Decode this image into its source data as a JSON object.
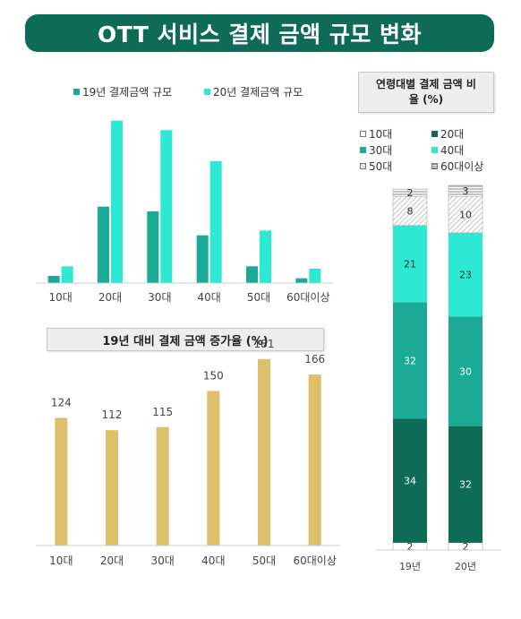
{
  "title": "OTT 서비스 결제 금액 규모 변화",
  "colors": {
    "banner": "#0e6b57",
    "teal_dark": "#0e6b57",
    "teal_mid": "#1aaa96",
    "teal_light": "#2de8d2",
    "gold": "#dcc06a",
    "white": "#ffffff",
    "hatch": "#cfcfcf"
  },
  "chart_data": [
    {
      "type": "bar",
      "title": "",
      "categories": [
        "10대",
        "20대",
        "30대",
        "40대",
        "50대",
        "60대이상"
      ],
      "series": [
        {
          "name": "19년 결제금액 규모",
          "values": [
            3,
            32,
            30,
            20,
            7,
            2
          ]
        },
        {
          "name": "20년 결제금액 규모",
          "values": [
            7,
            68,
            64,
            51,
            22,
            6
          ]
        }
      ],
      "xlabel": "",
      "ylabel": "",
      "ylim": [
        0,
        75
      ],
      "grid": false,
      "legend": "top"
    },
    {
      "type": "bar",
      "title": "19년 대비 결제 금액 증가율 (%)",
      "categories": [
        "10대",
        "20대",
        "30대",
        "40대",
        "50대",
        "60대이상"
      ],
      "values": [
        124,
        112,
        115,
        150,
        181,
        166
      ],
      "ylim": [
        0,
        220
      ],
      "grid": false
    },
    {
      "type": "bar",
      "stacked": true,
      "title": "연령대별 결제 금액 비율 (%)",
      "categories": [
        "19년",
        "20년"
      ],
      "series": [
        {
          "name": "10대",
          "values": [
            2,
            2
          ]
        },
        {
          "name": "20대",
          "values": [
            34,
            32
          ]
        },
        {
          "name": "30대",
          "values": [
            32,
            30
          ]
        },
        {
          "name": "40대",
          "values": [
            21,
            23
          ]
        },
        {
          "name": "50대",
          "values": [
            8,
            10
          ]
        },
        {
          "name": "60대이상",
          "values": [
            2,
            3
          ]
        }
      ],
      "ylim": [
        0,
        100
      ],
      "legend": "top"
    }
  ]
}
